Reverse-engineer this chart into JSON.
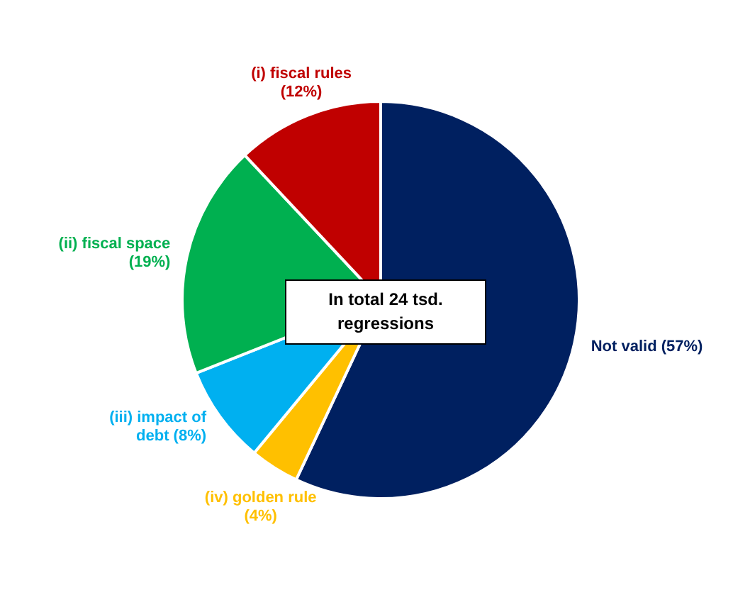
{
  "chart_data": {
    "type": "pie",
    "categories": [
      "Not valid",
      "(iv) golden rule",
      "(iii) impact of debt",
      "(ii) fiscal space",
      "(i) fiscal rules"
    ],
    "values": [
      57,
      4,
      8,
      19,
      12
    ],
    "colors": [
      "#002060",
      "#ffc000",
      "#00b0f0",
      "#00b050",
      "#c00000"
    ],
    "value_labels": [
      "(57%)",
      "(4%)",
      "(8%)",
      "(19%)",
      "(12%)"
    ],
    "annotations": [
      "In total 24 tsd. regressions"
    ]
  }
}
